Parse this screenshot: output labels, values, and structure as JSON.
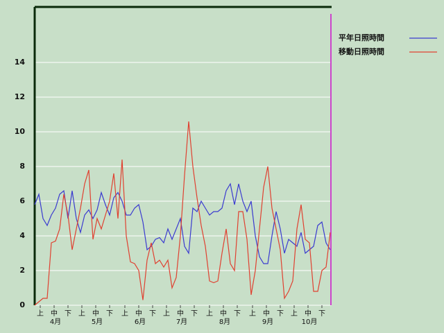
{
  "chart_data": {
    "type": "line",
    "x": [
      0,
      3,
      6,
      9,
      12,
      15,
      18,
      21,
      24,
      27,
      30,
      33,
      36,
      39,
      42,
      45,
      48,
      51,
      54,
      57,
      60,
      63,
      66,
      69,
      72,
      75,
      78,
      81,
      84,
      87,
      90,
      93,
      96,
      99,
      102,
      105,
      108,
      111,
      114,
      117,
      120,
      123,
      126,
      129,
      132,
      135,
      138,
      141,
      144,
      147,
      150,
      153,
      156,
      159,
      162,
      165,
      168,
      171,
      174,
      177,
      180,
      183,
      186,
      189,
      192,
      195,
      198,
      201,
      204,
      207,
      210,
      213
    ],
    "series": [
      {
        "name": "平年日照時間",
        "color": "#3a3ad0",
        "values": [
          5.8,
          6.4,
          5.0,
          4.6,
          5.2,
          5.6,
          6.4,
          6.6,
          5.0,
          6.6,
          5.0,
          4.2,
          5.2,
          5.5,
          5.0,
          5.5,
          6.5,
          5.8,
          5.2,
          6.2,
          6.5,
          6.0,
          5.2,
          5.2,
          5.6,
          5.8,
          4.8,
          3.2,
          3.4,
          3.8,
          3.9,
          3.6,
          4.4,
          3.8,
          4.4,
          5.0,
          3.4,
          3.0,
          5.6,
          5.4,
          6.0,
          5.6,
          5.2,
          5.4,
          5.4,
          5.6,
          6.6,
          7.0,
          5.8,
          7.0,
          6.0,
          5.4,
          6.0,
          4.0,
          2.8,
          2.4,
          2.4,
          4.0,
          5.4,
          4.4,
          3.0,
          3.8,
          3.6,
          3.4,
          4.2,
          3.0,
          3.2,
          3.4,
          4.6,
          4.8,
          3.6,
          3.2
        ]
      },
      {
        "name": "移動日照時間",
        "color": "#e04030",
        "values": [
          0,
          0.2,
          0.4,
          0.4,
          3.6,
          3.7,
          4.4,
          6.4,
          5.2,
          3.2,
          4.4,
          5.6,
          7.0,
          7.8,
          3.8,
          5.0,
          4.4,
          5.2,
          6.0,
          7.6,
          5.0,
          8.4,
          4.0,
          2.5,
          2.4,
          2.0,
          0.3,
          2.6,
          3.6,
          2.4,
          2.6,
          2.2,
          2.6,
          1.0,
          1.6,
          4.0,
          7.5,
          10.6,
          8.0,
          6.2,
          4.6,
          3.4,
          1.4,
          1.3,
          1.4,
          3.0,
          4.4,
          2.4,
          2.0,
          5.4,
          5.4,
          3.8,
          0.6,
          2.0,
          4.4,
          6.8,
          8.0,
          5.6,
          4.4,
          3.2,
          0.4,
          0.8,
          1.4,
          4.4,
          5.8,
          3.8,
          3.6,
          0.8,
          0.8,
          2.0,
          2.2,
          4.2
        ]
      }
    ],
    "xlim": [
      0,
      214
    ],
    "xticks": [
      {
        "value": 4,
        "label": "上"
      },
      {
        "value": 14,
        "label": "中"
      },
      {
        "value": 24,
        "label": "下"
      },
      {
        "value": 34,
        "label": "上"
      },
      {
        "value": 44,
        "label": "中"
      },
      {
        "value": 54,
        "label": "下"
      },
      {
        "value": 65,
        "label": "上"
      },
      {
        "value": 75,
        "label": "中"
      },
      {
        "value": 85,
        "label": "下"
      },
      {
        "value": 95,
        "label": "上"
      },
      {
        "value": 105,
        "label": "中"
      },
      {
        "value": 115,
        "label": "下"
      },
      {
        "value": 126,
        "label": "上"
      },
      {
        "value": 136,
        "label": "中"
      },
      {
        "value": 146,
        "label": "下"
      },
      {
        "value": 157,
        "label": "上"
      },
      {
        "value": 167,
        "label": "中"
      },
      {
        "value": 177,
        "label": "下"
      },
      {
        "value": 187,
        "label": "上"
      },
      {
        "value": 197,
        "label": "中"
      },
      {
        "value": 207,
        "label": "下"
      }
    ],
    "month_ticks": [
      {
        "value": 15,
        "label": "4月"
      },
      {
        "value": 45,
        "label": "5月"
      },
      {
        "value": 76,
        "label": "6月"
      },
      {
        "value": 106,
        "label": "7月"
      },
      {
        "value": 137,
        "label": "8月"
      },
      {
        "value": 168,
        "label": "9月"
      },
      {
        "value": 198,
        "label": "10月"
      }
    ],
    "ylim": [
      0,
      17.2
    ],
    "yticks": [
      0,
      2,
      4,
      6,
      8,
      10,
      12,
      14
    ],
    "grid": true,
    "marker_line": {
      "x": 213.5,
      "color": "#cc44cc"
    },
    "legend": "top-right"
  }
}
